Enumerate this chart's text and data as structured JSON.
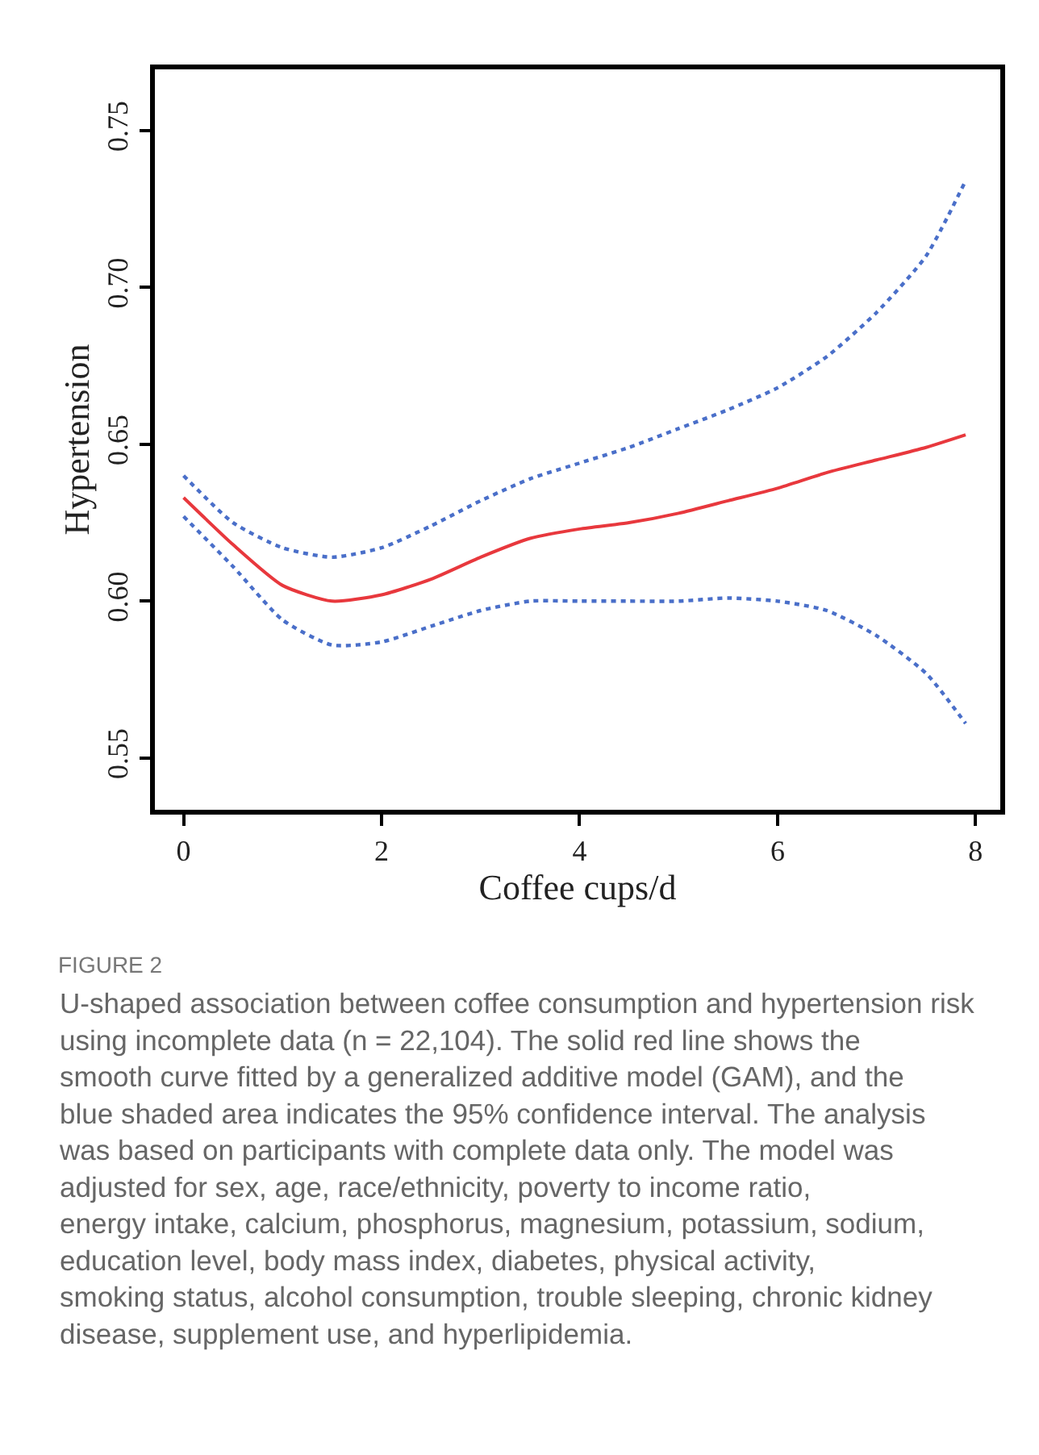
{
  "chart_data": {
    "type": "line",
    "xlabel": "Coffee cups/d",
    "ylabel": "Hypertension",
    "x": [
      0,
      0.5,
      1,
      1.5,
      2,
      2.5,
      3,
      3.5,
      4,
      4.5,
      5,
      5.5,
      6,
      6.5,
      7,
      7.5,
      7.9
    ],
    "series": [
      {
        "color": "#e8383d",
        "line_style": "solid",
        "values": [
          0.633,
          0.618,
          0.605,
          0.6,
          0.602,
          0.607,
          0.614,
          0.62,
          0.623,
          0.625,
          0.628,
          0.632,
          0.636,
          0.641,
          0.645,
          0.649,
          0.653
        ]
      },
      {
        "color": "#4a6fc9",
        "line_style": "dotted",
        "values": [
          0.64,
          0.625,
          0.617,
          0.614,
          0.617,
          0.624,
          0.632,
          0.639,
          0.644,
          0.649,
          0.655,
          0.661,
          0.668,
          0.678,
          0.692,
          0.71,
          0.734
        ]
      },
      {
        "color": "#4a6fc9",
        "line_style": "dotted",
        "values": [
          0.627,
          0.611,
          0.594,
          0.586,
          0.587,
          0.592,
          0.597,
          0.6,
          0.6,
          0.6,
          0.6,
          0.601,
          0.6,
          0.597,
          0.589,
          0.577,
          0.561
        ]
      }
    ],
    "xlim": [
      -0.29,
      8.25
    ],
    "ylim": [
      0.5335,
      0.7695
    ],
    "xticks": [
      0,
      2,
      4,
      6,
      8
    ],
    "yticks": [
      0.55,
      {
        "value": 0.6,
        "label": "0.60"
      },
      0.65,
      {
        "value": 0.7,
        "label": "0.70"
      },
      0.75
    ],
    "marker": "none",
    "annotations": [
      "FIGURE 2",
      "U-shaped association between coffee consumption and hypertension risk using incomplete data (n = 22,104). The solid red line shows the smooth curve fitted by a generalized additive model (GAM), and the blue shaded area indicates the 95% confidence interval. The analysis was based on participants with complete data only. The model was adjusted for sex, age, race/ethnicity, poverty to income ratio, energy intake, calcium, phosphorus, magnesium, potassium, sodium, education level, body mass index, diabetes, physical activity, smoking status, alcohol consumption, trouble sleeping, chronic kidney disease, supplement use, and hyperlipidemia."
    ]
  }
}
